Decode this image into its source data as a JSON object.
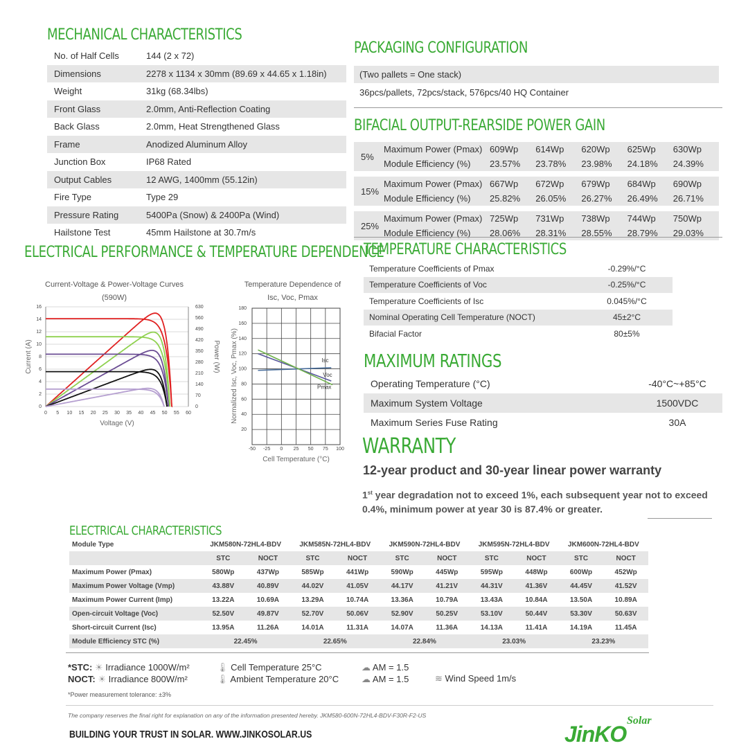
{
  "mechanical": {
    "title": "MECHANICAL CHARACTERISTICS",
    "rows": [
      [
        "No. of Half Cells",
        "144 (2 x 72)"
      ],
      [
        "Dimensions",
        "2278 x 1134 x 30mm (89.69 x 44.65 x 1.18in)"
      ],
      [
        "Weight",
        "31kg (68.34lbs)"
      ],
      [
        "Front Glass",
        "2.0mm, Anti-Reflection Coating"
      ],
      [
        "Back Glass",
        "2.0mm, Heat Strengthened Glass"
      ],
      [
        "Frame",
        "Anodized Aluminum Alloy"
      ],
      [
        "Junction Box",
        "IP68 Rated"
      ],
      [
        "Output Cables",
        "12 AWG, 1400mm (55.12in)"
      ],
      [
        "Fire Type",
        "Type 29"
      ],
      [
        "Pressure Rating",
        "5400Pa (Snow) & 2400Pa (Wind)"
      ],
      [
        "Hailstone Test",
        "45mm Hailstone at 30.7m/s"
      ]
    ]
  },
  "packaging": {
    "title": "PACKAGING CONFIGURATION",
    "line1": "(Two pallets = One stack)",
    "line2": "36pcs/pallets, 72pcs/stack, 576pcs/40 HQ Container"
  },
  "bifacial": {
    "title": "BIFACIAL OUTPUT-REARSIDE POWER GAIN",
    "label_power": "Maximum Power (Pmax)",
    "label_eff": "Module Efficiency (%)",
    "groups": [
      {
        "gain": "5%",
        "power": [
          "609Wp",
          "614Wp",
          "620Wp",
          "625Wp",
          "630Wp"
        ],
        "eff": [
          "23.57%",
          "23.78%",
          "23.98%",
          "24.18%",
          "24.39%"
        ]
      },
      {
        "gain": "15%",
        "power": [
          "667Wp",
          "672Wp",
          "679Wp",
          "684Wp",
          "690Wp"
        ],
        "eff": [
          "25.82%",
          "26.05%",
          "26.27%",
          "26.49%",
          "26.71%"
        ]
      },
      {
        "gain": "25%",
        "power": [
          "725Wp",
          "731Wp",
          "738Wp",
          "744Wp",
          "750Wp"
        ],
        "eff": [
          "28.06%",
          "28.31%",
          "28.55%",
          "28.79%",
          "29.03%"
        ]
      }
    ]
  },
  "electrical_perf": {
    "title": "ELECTRICAL PERFORMANCE & TEMPERATURE DEPENDENCE"
  },
  "chart_data": [
    {
      "type": "line",
      "title": "Current-Voltage & Power-Voltage Curves (590W)",
      "xlabel": "Voltage (V)",
      "ylabel": "Current (A)",
      "y2label": "Power (W)",
      "xlim": [
        0,
        60
      ],
      "ylim": [
        0,
        16
      ],
      "y2lim": [
        0,
        630
      ],
      "xticks": [
        "0",
        "5",
        "10",
        "15",
        "20",
        "25",
        "30",
        "35",
        "40",
        "45",
        "50",
        "55",
        "60"
      ],
      "yticks": [
        "0",
        "2",
        "4",
        "6",
        "8",
        "10",
        "12",
        "14",
        "16"
      ],
      "y2ticks": [
        "0",
        "70",
        "140",
        "210",
        "280",
        "350",
        "420",
        "490",
        "560",
        "630"
      ],
      "grid": true,
      "series": [
        {
          "isc": 14.1,
          "voc": 53,
          "pmax": 590,
          "color": "#e02020"
        },
        {
          "isc": 11.2,
          "voc": 52.2,
          "pmax": 470,
          "color": "#8fd14f"
        },
        {
          "isc": 8.4,
          "voc": 51.6,
          "pmax": 355,
          "color": "#6a4c93"
        },
        {
          "isc": 5.6,
          "voc": 51,
          "pmax": 235,
          "color": "#111111"
        },
        {
          "isc": 2.8,
          "voc": 49.8,
          "pmax": 115,
          "color": "#b59fd0"
        }
      ]
    },
    {
      "type": "line",
      "title": "Temperature Dependence of Isc, Voc, Pmax",
      "xlabel": "Cell Temperature (°C)",
      "ylabel": "Normalized Isc, Voc, Pmax (%)",
      "xlim": [
        -50,
        100
      ],
      "ylim": [
        0,
        180
      ],
      "xticks": [
        "-50",
        "-25",
        "0",
        "25",
        "50",
        "75",
        "100"
      ],
      "yticks": [
        "20",
        "40",
        "60",
        "80",
        "100",
        "120",
        "140",
        "160",
        "180"
      ],
      "grid": true,
      "series": [
        {
          "name": "Isc",
          "x": [
            -40,
            85
          ],
          "y": [
            98,
            101.5
          ],
          "color": "#4a6f9c"
        },
        {
          "name": "Voc",
          "x": [
            -40,
            85
          ],
          "y": [
            120,
            84
          ],
          "color": "#5a5a9c"
        },
        {
          "name": "Pmax",
          "x": [
            -40,
            87
          ],
          "y": [
            125,
            79
          ],
          "color": "#6fb24a"
        }
      ]
    }
  ],
  "temperature": {
    "title": "TEMPERATURE CHARACTERISTICS",
    "rows": [
      [
        "Temperature Coefficients of Pmax",
        "-0.29%/°C"
      ],
      [
        "Temperature Coefficients of Voc",
        "-0.25%/°C"
      ],
      [
        "Temperature Coefficients of Isc",
        "0.045%/°C"
      ],
      [
        "Nominal Operating Cell Temperature (NOCT)",
        "45±2°C"
      ],
      [
        "Bifacial Factor",
        "80±5%"
      ]
    ]
  },
  "max_ratings": {
    "title": "MAXIMUM RATINGS",
    "rows": [
      [
        "Operating Temperature (°C)",
        "-40°C~+85°C"
      ],
      [
        "Maximum System Voltage",
        "1500VDC"
      ],
      [
        "Maximum Series Fuse Rating",
        "30A"
      ]
    ]
  },
  "warranty": {
    "title": "WARRANTY",
    "subtitle": "12-year product and 30-year linear power warranty",
    "sup": "st",
    "body_a": "1",
    "body_b": " year degradation not to exceed 1%, each subsequent year not to exceed 0.4%, minimum power at year 30 is 87.4% or greater."
  },
  "electrical": {
    "title": "ELECTRICAL CHARACTERISTICS",
    "module_type": "Module Type",
    "models": [
      "JKM580N-72HL4-BDV",
      "JKM585N-72HL4-BDV",
      "JKM590N-72HL4-BDV",
      "JKM595N-72HL4-BDV",
      "JKM600N-72HL4-BDV"
    ],
    "stc": "STC",
    "noct": "NOCT",
    "rows": [
      [
        "Maximum Power (Pmax)",
        "580Wp",
        "437Wp",
        "585Wp",
        "441Wp",
        "590Wp",
        "445Wp",
        "595Wp",
        "448Wp",
        "600Wp",
        "452Wp"
      ],
      [
        "Maximum Power Voltage (Vmp)",
        "43.88V",
        "40.89V",
        "44.02V",
        "41.05V",
        "44.17V",
        "41.21V",
        "44.31V",
        "41.36V",
        "44.45V",
        "41.52V"
      ],
      [
        "Maximum Power Current (Imp)",
        "13.22A",
        "10.69A",
        "13.29A",
        "10.74A",
        "13.36A",
        "10.79A",
        "13.43A",
        "10.84A",
        "13.50A",
        "10.89A"
      ],
      [
        "Open-circuit Voltage (Voc)",
        "52.50V",
        "49.87V",
        "52.70V",
        "50.06V",
        "52.90V",
        "50.25V",
        "53.10V",
        "50.44V",
        "53.30V",
        "50.63V"
      ],
      [
        "Short-circuit Current (Isc)",
        "13.95A",
        "11.26A",
        "14.01A",
        "11.31A",
        "14.07A",
        "11.36A",
        "14.13A",
        "11.41A",
        "14.19A",
        "11.45A"
      ]
    ],
    "eff_label": "Module Efficiency STC (%)",
    "eff": [
      "22.45%",
      "22.65%",
      "22.84%",
      "23.03%",
      "23.23%"
    ]
  },
  "conditions": {
    "stc": "*STC:",
    "noct": "NOCT:",
    "irr_stc": "Irradiance 1000W/m²",
    "irr_noct": "Irradiance 800W/m²",
    "cell_temp": "Cell Temperature 25°C",
    "amb_temp": "Ambient Temperature 20°C",
    "am1": "AM = 1.5",
    "am2": "AM = 1.5",
    "wind": "Wind Speed 1m/s",
    "tolerance": "*Power measurement tolerance: ±3%"
  },
  "footer": {
    "disclaimer": "The company reserves the final right for explanation on any of the information presented hereby. JKM580-600N-72HL4-BDV-F30R-F2-US",
    "tagline": "BUILDING YOUR TRUST IN SOLAR. WWW.JINKOSOLAR.US",
    "logo_main": "JinKO",
    "logo_sub": "Solar"
  },
  "colors": {
    "accent": "#3aaa35",
    "row_gray": "#e6e6e6"
  }
}
